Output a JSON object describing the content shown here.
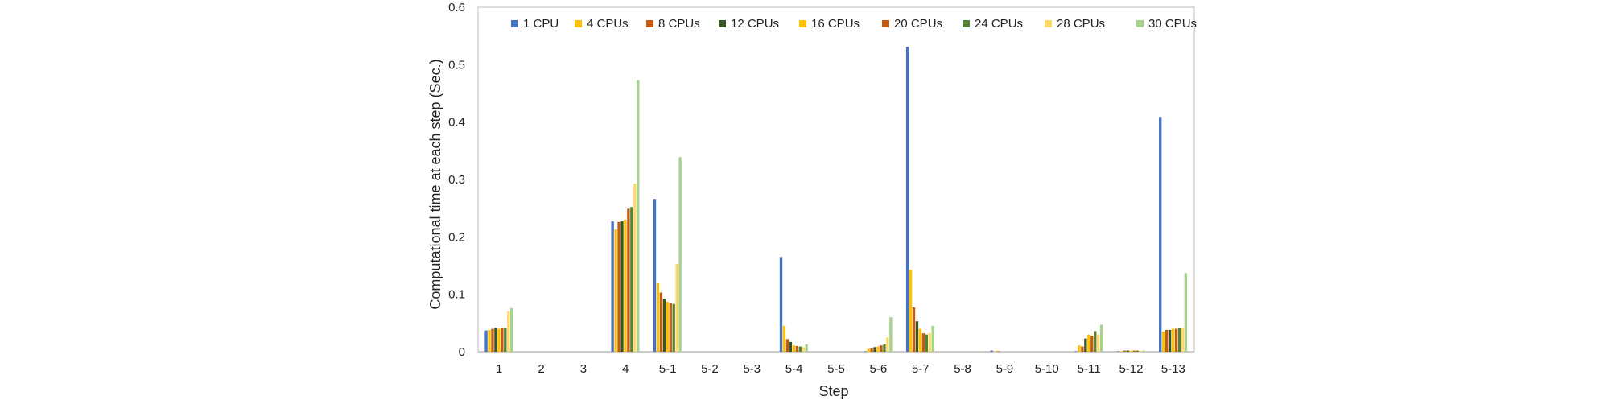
{
  "chart_data": {
    "type": "bar",
    "title": "",
    "xlabel": "Step",
    "ylabel": "Computational time at each step  (Sec.)",
    "ylim": [
      0,
      0.6
    ],
    "yticks": [
      "0",
      "0.1",
      "0.2",
      "0.3",
      "0.4",
      "0.5",
      "0.6"
    ],
    "grid": false,
    "legend_position": "top",
    "categories": [
      "1",
      "2",
      "3",
      "4",
      "5-1",
      "5-2",
      "5-3",
      "5-4",
      "5-5",
      "5-6",
      "5-7",
      "5-8",
      "5-9",
      "5-10",
      "5-11",
      "5-12",
      "5-13"
    ],
    "series": [
      {
        "name": "1 CPU",
        "color": "#4472C4",
        "values": [
          0.037,
          0,
          0,
          0.227,
          0.266,
          0,
          0,
          0.165,
          0,
          0.001,
          0.531,
          0,
          0.002,
          0,
          0.001,
          0.001,
          0.409
        ]
      },
      {
        "name": "4 CPUs",
        "color": "#FFC000",
        "values": [
          0.038,
          0,
          0,
          0.213,
          0.119,
          0,
          0,
          0.045,
          0,
          0.005,
          0.143,
          0,
          0.001,
          0,
          0.011,
          0.001,
          0.035
        ]
      },
      {
        "name": "8 CPUs",
        "color": "#C55A11",
        "values": [
          0.04,
          0,
          0,
          0.226,
          0.103,
          0,
          0,
          0.022,
          0,
          0.006,
          0.077,
          0,
          0.001,
          0,
          0.009,
          0.002,
          0.038
        ]
      },
      {
        "name": "12 CPUs",
        "color": "#375623",
        "values": [
          0.042,
          0,
          0,
          0.227,
          0.092,
          0,
          0,
          0.017,
          0,
          0.008,
          0.053,
          0,
          0,
          0,
          0.023,
          0.002,
          0.038
        ]
      },
      {
        "name": "16 CPUs",
        "color": "#FFC000",
        "values": [
          0.04,
          0,
          0,
          0.23,
          0.087,
          0,
          0,
          0.011,
          0,
          0.009,
          0.04,
          0,
          0,
          0,
          0.03,
          0.002,
          0.04
        ]
      },
      {
        "name": "20 CPUs",
        "color": "#C55A11",
        "values": [
          0.041,
          0,
          0,
          0.249,
          0.085,
          0,
          0,
          0.01,
          0,
          0.011,
          0.032,
          0,
          0,
          0,
          0.028,
          0.002,
          0.04
        ]
      },
      {
        "name": "24 CPUs",
        "color": "#548235",
        "values": [
          0.042,
          0,
          0,
          0.252,
          0.083,
          0,
          0,
          0.009,
          0,
          0.013,
          0.03,
          0,
          0,
          0,
          0.036,
          0.002,
          0.041
        ]
      },
      {
        "name": "28 CPUs",
        "color": "#FFD966",
        "values": [
          0.07,
          0,
          0,
          0.293,
          0.153,
          0,
          0,
          0.008,
          0,
          0.025,
          0.033,
          0,
          0,
          0,
          0.03,
          0.002,
          0.041
        ]
      },
      {
        "name": "30 CPUs",
        "color": "#A9D18E",
        "values": [
          0.076,
          0,
          0,
          0.473,
          0.339,
          0,
          0,
          0.013,
          0,
          0.06,
          0.045,
          0,
          0,
          0,
          0.047,
          0.002,
          0.137
        ]
      }
    ]
  }
}
